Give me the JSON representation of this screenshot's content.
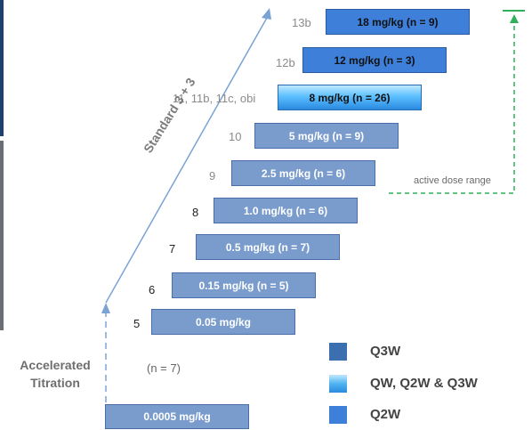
{
  "bars": [
    {
      "label": "0.0005 mg/kg",
      "level": "",
      "type": "q3w"
    },
    {
      "label": "0.05 mg/kg",
      "level": "5",
      "type": "q3w"
    },
    {
      "label": "0.15 mg/kg (n = 5)",
      "level": "6",
      "type": "q3w"
    },
    {
      "label": "0.5 mg/kg (n = 7)",
      "level": "7",
      "type": "q3w"
    },
    {
      "label": "1.0 mg/kg (n = 6)",
      "level": "8",
      "type": "q3w"
    },
    {
      "label": "2.5 mg/kg (n = 6)",
      "level": "9",
      "type": "q3w"
    },
    {
      "label": "5 mg/kg (n = 9)",
      "level": "10",
      "type": "q3w"
    },
    {
      "label": "8 mg/kg (n = 26)",
      "level": "11, 11b, 11c, obi",
      "type": "mix"
    },
    {
      "label": "12 mg/kg (n = 3)",
      "level": "12b",
      "type": "q2w"
    },
    {
      "label": "18 mg/kg (n = 9)",
      "level": "13b",
      "type": "q2w"
    }
  ],
  "labels": {
    "standard": "Standard 3 + 3",
    "accelerated": "Accelerated Titration",
    "accelerated_n": "(n = 7)",
    "active_dose_range": "active dose range"
  },
  "legend": [
    {
      "label": "Q3W",
      "color": "#3b6fb0"
    },
    {
      "label": "QW, Q2W & Q3W",
      "color": "#4fb4f0"
    },
    {
      "label": "Q2W",
      "color": "#3d7fd9"
    }
  ],
  "colors": {
    "q3w": "#7a9ccc",
    "q2w": "#3d7fd9",
    "arrow": "#7aa3d4",
    "dashed_green": "#2fb05a"
  }
}
